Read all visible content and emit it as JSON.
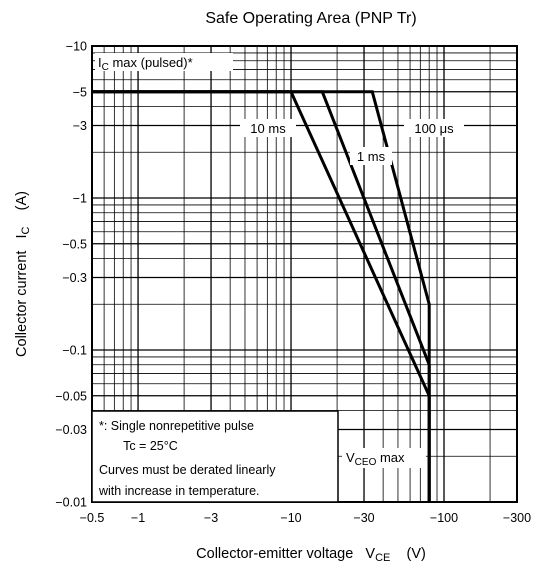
{
  "chart_data": {
    "type": "line",
    "title": "Safe Operating Area (PNP Tr)",
    "xlabel": {
      "main": "Collector-emitter voltage",
      "symbol": "V",
      "sub": "CE",
      "unit": "(V)"
    },
    "ylabel": {
      "main": "Collector current",
      "symbol": "I",
      "sub": "C",
      "unit": "(A)"
    },
    "xscale": "log",
    "yscale": "log",
    "xlim": [
      -0.5,
      -300
    ],
    "ylim": [
      -0.01,
      -10
    ],
    "grid": true,
    "x_ticks": [
      {
        "v": -0.5,
        "label": "−0.5"
      },
      {
        "v": -1,
        "label": "−1"
      },
      {
        "v": -3,
        "label": "−3"
      },
      {
        "v": -10,
        "label": "−10"
      },
      {
        "v": -30,
        "label": "−30"
      },
      {
        "v": -100,
        "label": "−100"
      },
      {
        "v": -300,
        "label": "−300"
      }
    ],
    "y_ticks": [
      {
        "v": -10,
        "label": "−10"
      },
      {
        "v": -5,
        "label": "−5"
      },
      {
        "v": -3,
        "label": "−3"
      },
      {
        "v": -1,
        "label": "−1"
      },
      {
        "v": -0.5,
        "label": "−0.5"
      },
      {
        "v": -0.3,
        "label": "−0.3"
      },
      {
        "v": -0.1,
        "label": "−0.1"
      },
      {
        "v": -0.05,
        "label": "−0.05"
      },
      {
        "v": -0.03,
        "label": "−0.03"
      },
      {
        "v": -0.01,
        "label": "−0.01"
      }
    ],
    "series": [
      {
        "name": "10 ms",
        "x": [
          -0.5,
          -10,
          -80,
          -80
        ],
        "y": [
          -5,
          -5,
          -0.05,
          -0.01
        ]
      },
      {
        "name": "1 ms",
        "x": [
          -0.5,
          -16,
          -80,
          -80
        ],
        "y": [
          -5,
          -5,
          -0.08,
          -0.01
        ]
      },
      {
        "name": "100 μs",
        "x": [
          -0.5,
          -34,
          -80,
          -80
        ],
        "y": [
          -5,
          -5,
          -0.2,
          -0.01
        ]
      }
    ],
    "annotations": {
      "icmax": {
        "symbol": "I",
        "sub": "C",
        "text": " max (pulsed)*"
      },
      "vceo": {
        "symbol": "V",
        "sub": "CEO",
        "text": " max"
      },
      "note": [
        "*:  Single nonrepetitive pulse",
        "       Tc = 25°C",
        "Curves must be derated linearly",
        "with increase in temperature."
      ]
    }
  }
}
